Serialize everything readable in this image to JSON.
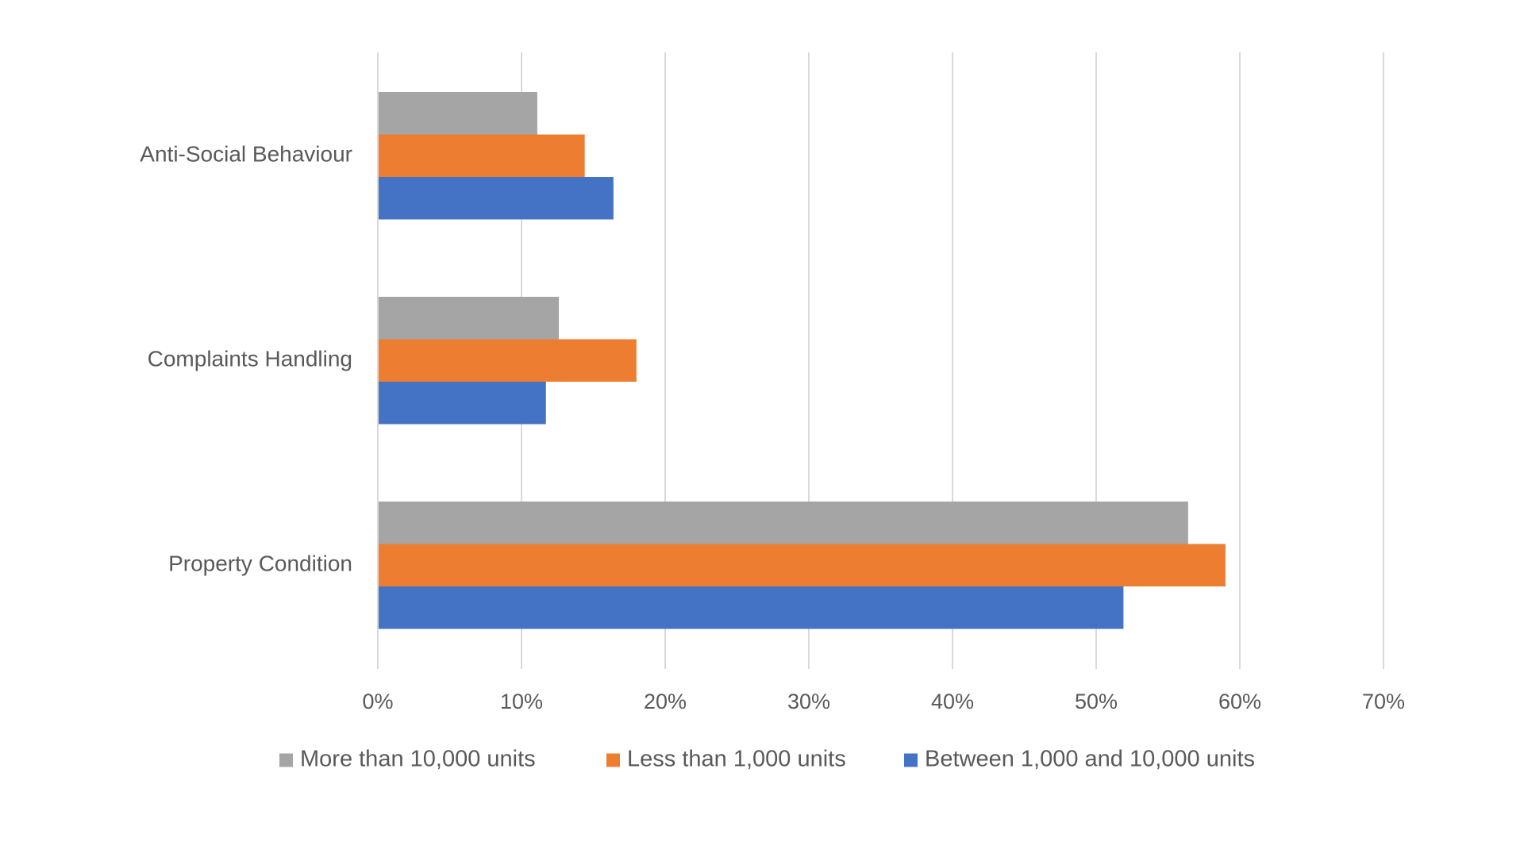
{
  "chart_data": {
    "type": "bar",
    "orientation": "horizontal",
    "title": "",
    "xlabel": "",
    "ylabel": "",
    "categories": [
      "Anti-Social Behaviour",
      "Complaints Handling",
      "Property Condition"
    ],
    "series": [
      {
        "name": "More than 10,000 units",
        "color": "#a5a5a5",
        "values": [
          11.1,
          12.6,
          56.4
        ]
      },
      {
        "name": "Less than 1,000 units",
        "color": "#ed7d31",
        "values": [
          14.4,
          18.0,
          59.0
        ]
      },
      {
        "name": "Between 1,000 and 10,000 units",
        "color": "#4472c4",
        "values": [
          16.4,
          11.7,
          51.9
        ]
      }
    ],
    "xlim": [
      0,
      70
    ],
    "x_ticks": [
      0,
      10,
      20,
      30,
      40,
      50,
      60,
      70
    ],
    "x_tick_labels": [
      "0%",
      "10%",
      "20%",
      "30%",
      "40%",
      "50%",
      "60%",
      "70%"
    ],
    "grid": true,
    "legend_position": "bottom",
    "colors": {
      "gridline": "#d9d9d9",
      "text": "#595959"
    }
  }
}
